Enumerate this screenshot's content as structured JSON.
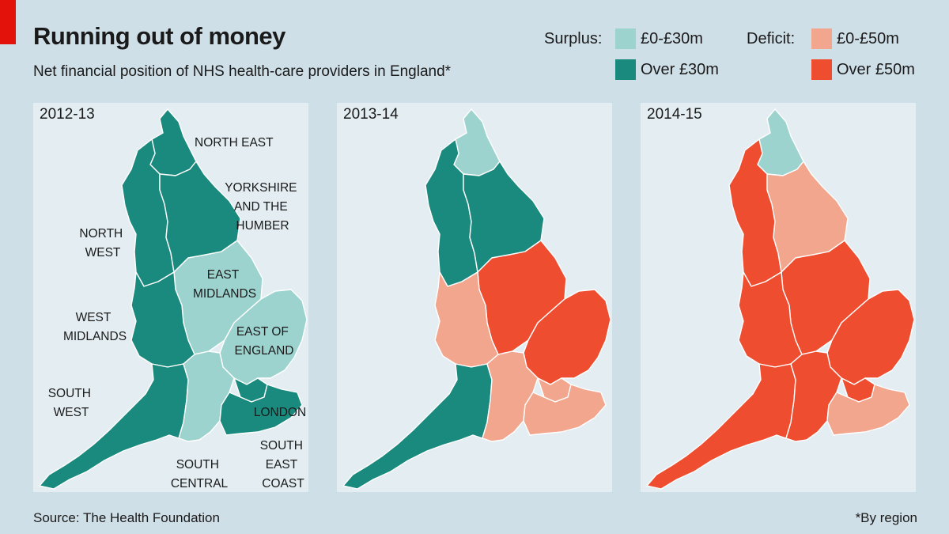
{
  "header": {
    "title": "Running out of money",
    "subtitle": "Net financial position of NHS health-care providers in England*"
  },
  "legend": {
    "surplus": {
      "label": "Surplus:",
      "items": [
        {
          "label": "£0-£30m",
          "color": "#9dd3cf"
        },
        {
          "label": "Over £30m",
          "color": "#1b8a7e"
        }
      ]
    },
    "deficit": {
      "label": "Deficit:",
      "items": [
        {
          "label": "£0-£50m",
          "color": "#f2a68d"
        },
        {
          "label": "Over £50m",
          "color": "#ef4d30"
        }
      ]
    }
  },
  "categories": {
    "surplus_low": "#9dd3cf",
    "surplus_high": "#1b8a7e",
    "deficit_low": "#f2a68d",
    "deficit_high": "#ef4d30"
  },
  "region_labels": {
    "north_east": [
      "NORTH EAST"
    ],
    "yorkshire": [
      "YORKSHIRE",
      "AND THE",
      "HUMBER"
    ],
    "north_west": [
      "NORTH",
      "WEST"
    ],
    "east_midlands": [
      "EAST",
      "MIDLANDS"
    ],
    "west_midlands": [
      "WEST",
      "MIDLANDS"
    ],
    "east_of_england": [
      "EAST OF",
      "ENGLAND"
    ],
    "south_west": [
      "SOUTH",
      "WEST"
    ],
    "london": [
      "LONDON"
    ],
    "south_central": [
      "SOUTH",
      "CENTRAL"
    ],
    "south_east_coast": [
      "SOUTH",
      "EAST",
      "COAST"
    ]
  },
  "panels": [
    {
      "year": "2012-13",
      "regions": {
        "north_east": "surplus_high",
        "north_west": "surplus_high",
        "yorkshire": "surplus_high",
        "east_midlands": "surplus_low",
        "west_midlands": "surplus_high",
        "east_of_england": "surplus_low",
        "south_west": "surplus_high",
        "south_central": "surplus_low",
        "london": "surplus_high",
        "south_east_coast": "surplus_high"
      }
    },
    {
      "year": "2013-14",
      "regions": {
        "north_east": "surplus_low",
        "north_west": "surplus_high",
        "yorkshire": "surplus_high",
        "east_midlands": "deficit_high",
        "west_midlands": "deficit_low",
        "east_of_england": "deficit_high",
        "south_west": "surplus_high",
        "south_central": "deficit_low",
        "london": "deficit_low",
        "south_east_coast": "deficit_low"
      }
    },
    {
      "year": "2014-15",
      "regions": {
        "north_east": "surplus_low",
        "north_west": "deficit_high",
        "yorkshire": "deficit_low",
        "east_midlands": "deficit_high",
        "west_midlands": "deficit_high",
        "east_of_england": "deficit_high",
        "south_west": "deficit_high",
        "south_central": "deficit_high",
        "london": "deficit_high",
        "south_east_coast": "deficit_low"
      }
    }
  ],
  "footer": {
    "source": "Source: The Health Foundation",
    "note": "*By region"
  }
}
